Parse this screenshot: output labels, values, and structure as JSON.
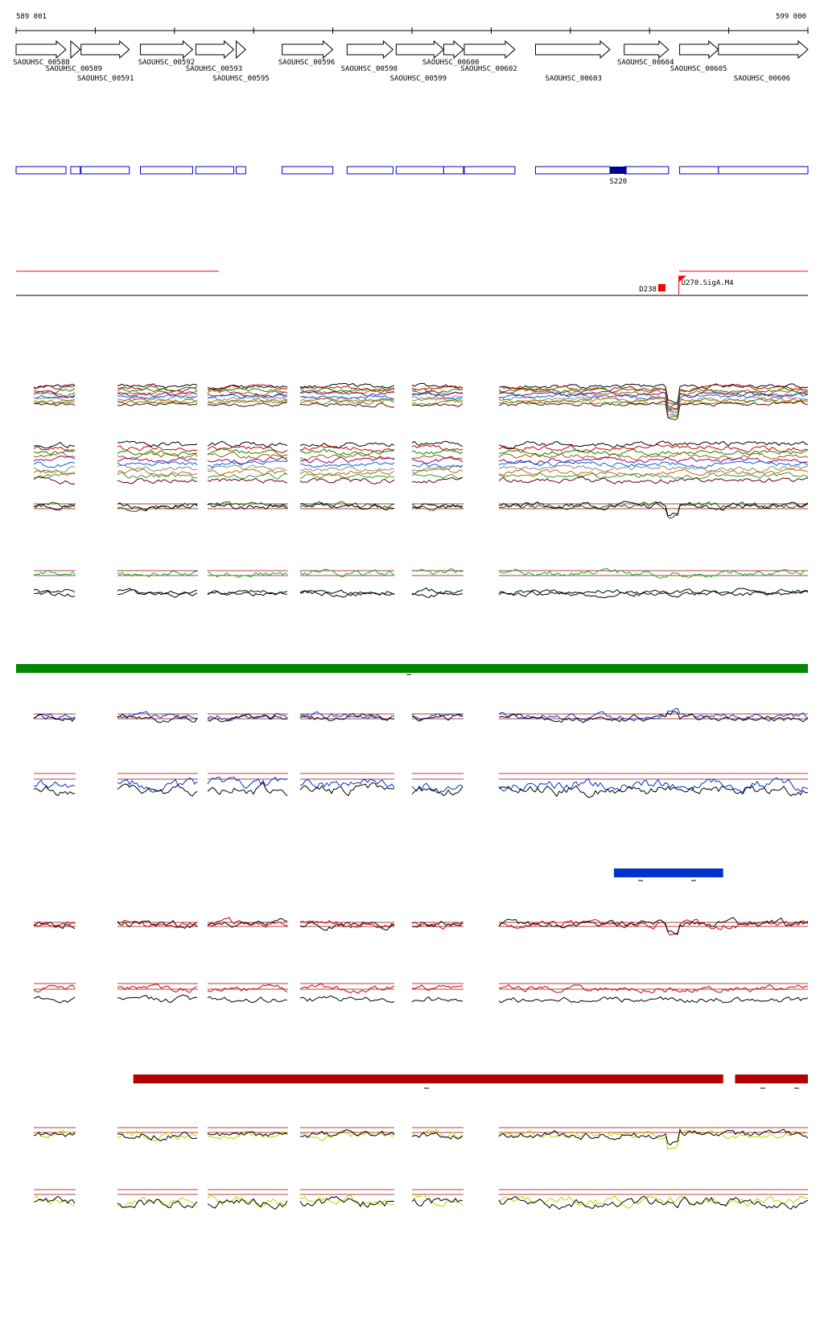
{
  "coordinates": {
    "start_label": "589 001",
    "end_label": "599 000"
  },
  "genes": [
    {
      "id": "SAOUHSC_00588",
      "strand": "+",
      "from": 0,
      "to": 63
    },
    {
      "id": "SAOUHSC_00589",
      "strand": "+",
      "from": 69,
      "to": 81
    },
    {
      "id": "SAOUHSC_00591",
      "strand": "+",
      "from": 82,
      "to": 143
    },
    {
      "id": "SAOUHSC_00592",
      "strand": "+",
      "from": 157,
      "to": 223
    },
    {
      "id": "SAOUHSC_00593",
      "strand": "+",
      "from": 227,
      "to": 275
    },
    {
      "id": "SAOUHSC_00595",
      "strand": "+",
      "from": 278,
      "to": 290
    },
    {
      "id": "SAOUHSC_00596",
      "strand": "+",
      "from": 336,
      "to": 400
    },
    {
      "id": "SAOUHSC_00598",
      "strand": "+",
      "from": 418,
      "to": 476
    },
    {
      "id": "SAOUHSC_00599",
      "strand": "+",
      "from": 480,
      "to": 540
    },
    {
      "id": "SAOUHSC_00600",
      "strand": "+",
      "from": 540,
      "to": 565
    },
    {
      "id": "SAOUHSC_00602",
      "strand": "+",
      "from": 566,
      "to": 630
    },
    {
      "id": "SAOUHSC_00603",
      "strand": "+",
      "from": 656,
      "to": 750
    },
    {
      "id": "SAOUHSC_00604",
      "strand": "+",
      "from": 768,
      "to": 824
    },
    {
      "id": "SAOUHSC_00605",
      "strand": "+",
      "from": 838,
      "to": 887
    },
    {
      "id": "SAOUHSC_00606",
      "strand": "+",
      "from": 887,
      "to": 1000
    }
  ],
  "gene_labels": [
    {
      "text": "SAOUHSC_00588",
      "at": 32,
      "row": 0
    },
    {
      "text": "SAOUHSC_00589",
      "at": 73,
      "row": 1
    },
    {
      "text": "SAOUHSC_00591",
      "at": 113,
      "row": 2
    },
    {
      "text": "SAOUHSC_00592",
      "at": 190,
      "row": 0
    },
    {
      "text": "SAOUHSC_00593",
      "at": 250,
      "row": 1
    },
    {
      "text": "SAOUHSC_00595",
      "at": 284,
      "row": 2
    },
    {
      "text": "SAOUHSC_00596",
      "at": 367,
      "row": 0
    },
    {
      "text": "SAOUHSC_00598",
      "at": 446,
      "row": 1
    },
    {
      "text": "SAOUHSC_00599",
      "at": 508,
      "row": 2
    },
    {
      "text": "SAOUHSC_00600",
      "at": 549,
      "row": 0
    },
    {
      "text": "SAOUHSC_00602",
      "at": 597,
      "row": 1
    },
    {
      "text": "SAOUHSC_00603",
      "at": 704,
      "row": 2
    },
    {
      "text": "SAOUHSC_00604",
      "at": 795,
      "row": 0
    },
    {
      "text": "SAOUHSC_00605",
      "at": 862,
      "row": 1
    },
    {
      "text": "SAOUHSC_00606",
      "at": 942,
      "row": 2
    }
  ],
  "features": {
    "highlight_label": "S220",
    "highlight_from": 750,
    "highlight_to": 771
  },
  "regulatory": {
    "terminator_label": "D238",
    "terminator_at": 816,
    "promoter_label": "U270.SigA.M4",
    "promoter_at": 837
  },
  "condition_bars": [
    {
      "name": "green",
      "color": "#008800",
      "segments": [
        [
          0,
          1000
        ]
      ]
    },
    {
      "name": "blue",
      "color": "#0033cc",
      "segments": [
        [
          755,
          893
        ]
      ]
    },
    {
      "name": "red",
      "color": "#b30000",
      "segments": [
        [
          148,
          893
        ],
        [
          908,
          1000
        ]
      ]
    }
  ],
  "colors": {
    "gene_outline": "#000000",
    "feature_box": "#0000cc",
    "feature_fill": "#000099",
    "reference_line": "#990000",
    "regulatory": "#ff0000"
  }
}
